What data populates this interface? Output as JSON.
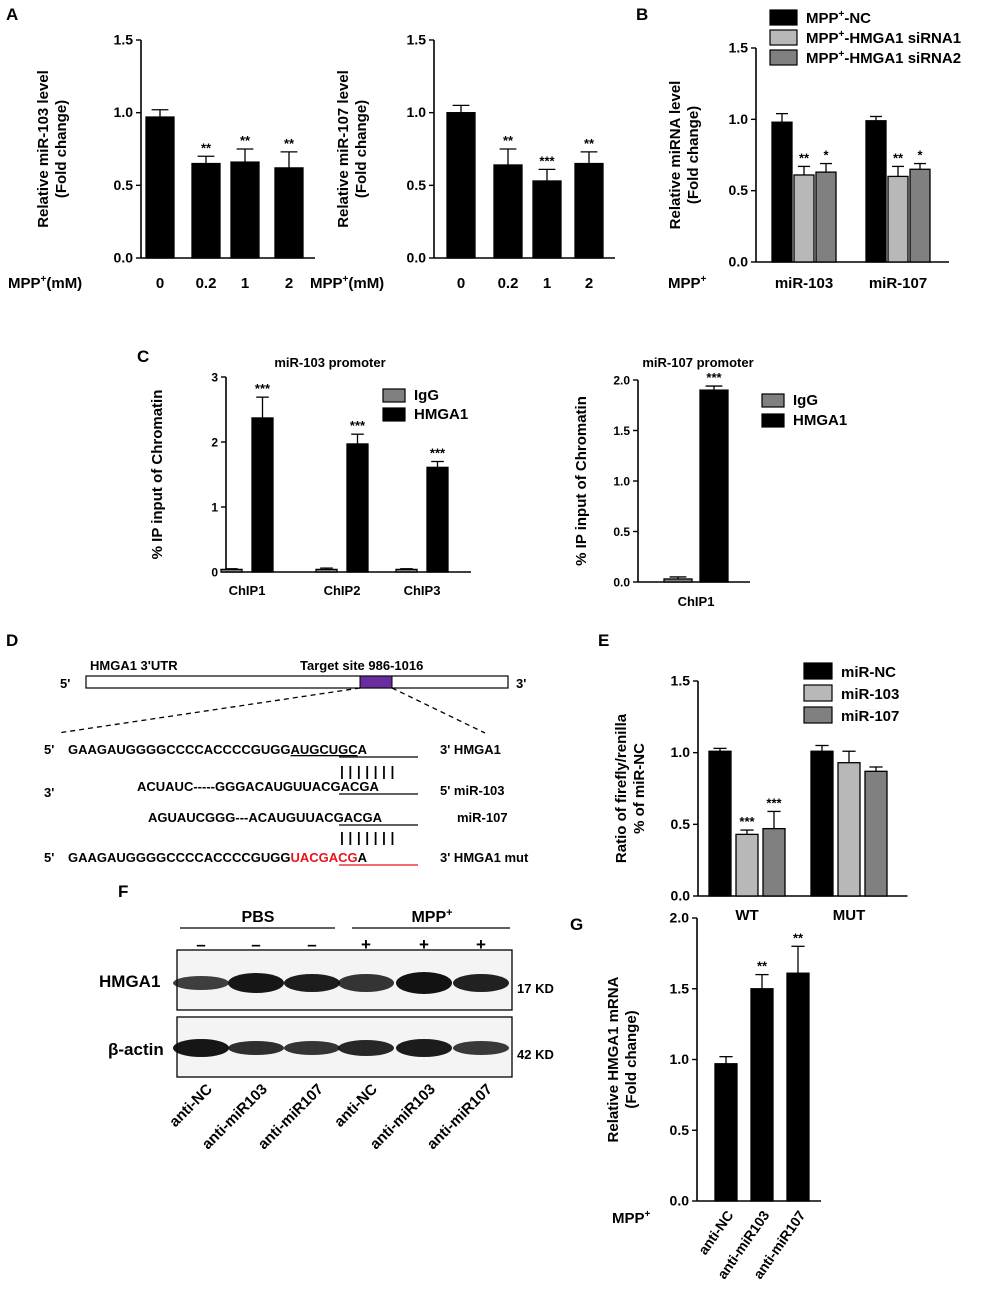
{
  "panels": {
    "A": "A",
    "B": "B",
    "C": "C",
    "D": "D",
    "E": "E",
    "F": "F",
    "G": "G"
  },
  "colors": {
    "black": "#000000",
    "gray_light": "#b8b8b8",
    "gray_dark": "#808080",
    "purple": "#6a2c9e",
    "red": "#e8141b"
  },
  "chart_data": [
    {
      "id": "A1",
      "type": "bar",
      "title": "",
      "ylabel": [
        "Relative miR-103 level",
        "(Fold change)"
      ],
      "xlabel_prefix": "MPP",
      "xlabel_sup": "+",
      "xlabel_suffix": "(mM)",
      "categories": [
        "0",
        "0.2",
        "1",
        "2"
      ],
      "values": [
        0.97,
        0.65,
        0.66,
        0.62
      ],
      "errors": [
        0.05,
        0.05,
        0.09,
        0.11
      ],
      "significance": [
        "",
        "**",
        "**",
        "**"
      ],
      "ylim": [
        0,
        1.5
      ],
      "yticks": [
        "0.0",
        "0.5",
        "1.0",
        "1.5"
      ]
    },
    {
      "id": "A2",
      "type": "bar",
      "title": "",
      "ylabel": [
        "Relative miR-107 level",
        "(Fold change)"
      ],
      "xlabel_prefix": "MPP",
      "xlabel_sup": "+",
      "xlabel_suffix": "(mM)",
      "categories": [
        "0",
        "0.2",
        "1",
        "2"
      ],
      "values": [
        1.0,
        0.64,
        0.53,
        0.65
      ],
      "errors": [
        0.05,
        0.11,
        0.08,
        0.08
      ],
      "significance": [
        "",
        "**",
        "***",
        "**"
      ],
      "ylim": [
        0,
        1.5
      ],
      "yticks": [
        "0.0",
        "0.5",
        "1.0",
        "1.5"
      ]
    },
    {
      "id": "B",
      "type": "bar",
      "ylabel": [
        "Relative miRNA level",
        "(Fold change)"
      ],
      "xlabel_prefix": "MPP",
      "xlabel_sup": "+",
      "categories": [
        "miR-103",
        "miR-107"
      ],
      "series": [
        {
          "name": [
            "MPP",
            "+",
            "-NC"
          ],
          "color": "#000000",
          "values": [
            0.98,
            0.99
          ],
          "errors": [
            0.06,
            0.03
          ],
          "significance": [
            "",
            ""
          ]
        },
        {
          "name": [
            "MPP",
            "+",
            "-HMGA1 siRNA1"
          ],
          "color": "#b8b8b8",
          "values": [
            0.61,
            0.6
          ],
          "errors": [
            0.06,
            0.07
          ],
          "significance": [
            "**",
            "**"
          ]
        },
        {
          "name": [
            "MPP",
            "+",
            "-HMGA1 siRNA2"
          ],
          "color": "#808080",
          "values": [
            0.63,
            0.65
          ],
          "errors": [
            0.06,
            0.04
          ],
          "significance": [
            "*",
            "*"
          ]
        }
      ],
      "legend": "top",
      "ylim": [
        0,
        1.5
      ],
      "yticks": [
        "0.0",
        "0.5",
        "1.0",
        "1.5"
      ]
    },
    {
      "id": "C1",
      "type": "bar",
      "title": "miR-103 promoter",
      "ylabel": [
        "% IP input of Chromatin"
      ],
      "categories": [
        "ChIP1",
        "ChIP2",
        "ChIP3"
      ],
      "series": [
        {
          "name": "IgG",
          "color": "#808080",
          "values": [
            0.04,
            0.04,
            0.04
          ],
          "errors": [
            0.01,
            0.02,
            0.01
          ],
          "significance": [
            "",
            "",
            ""
          ]
        },
        {
          "name": "HMGA1",
          "color": "#000000",
          "values": [
            2.37,
            1.97,
            1.61
          ],
          "errors": [
            0.32,
            0.15,
            0.09
          ],
          "significance": [
            "***",
            "***",
            "***"
          ]
        }
      ],
      "legend": "top-right",
      "ylim": [
        0,
        3
      ],
      "yticks": [
        "0",
        "1",
        "2",
        "3"
      ]
    },
    {
      "id": "C2",
      "type": "bar",
      "title": "miR-107 promoter",
      "ylabel": [
        "% IP input of Chromatin"
      ],
      "categories": [
        "ChIP1"
      ],
      "series": [
        {
          "name": "IgG",
          "color": "#808080",
          "values": [
            0.03
          ],
          "errors": [
            0.02
          ],
          "significance": [
            ""
          ]
        },
        {
          "name": "HMGA1",
          "color": "#000000",
          "values": [
            1.9
          ],
          "errors": [
            0.04
          ],
          "significance": [
            "***"
          ]
        }
      ],
      "legend": "top-right",
      "ylim": [
        0,
        2.0
      ],
      "yticks": [
        "0.0",
        "0.5",
        "1.0",
        "1.5",
        "2.0"
      ]
    },
    {
      "id": "E",
      "type": "bar",
      "ylabel": [
        "Ratio of firefly/renilla",
        "% of miR-NC"
      ],
      "categories": [
        "WT",
        "MUT"
      ],
      "series": [
        {
          "name": "miR-NC",
          "color": "#000000",
          "values": [
            1.01,
            1.01
          ],
          "errors": [
            0.02,
            0.04
          ],
          "significance": [
            "",
            ""
          ]
        },
        {
          "name": "miR-103",
          "color": "#b8b8b8",
          "values": [
            0.43,
            0.93
          ],
          "errors": [
            0.03,
            0.08
          ],
          "significance": [
            "***",
            ""
          ]
        },
        {
          "name": "miR-107",
          "color": "#808080",
          "values": [
            0.47,
            0.87
          ],
          "errors": [
            0.12,
            0.03
          ],
          "significance": [
            "***",
            ""
          ]
        }
      ],
      "legend": "top-right",
      "ylim": [
        0,
        1.5
      ],
      "yticks": [
        "0.0",
        "0.5",
        "1.0",
        "1.5"
      ]
    },
    {
      "id": "G",
      "type": "bar",
      "ylabel": [
        "Relative HMGA1 mRNA",
        "(Fold change)"
      ],
      "xlabel_prefix": "MPP",
      "xlabel_sup": "+",
      "categories": [
        "anti-NC",
        "anti-miR103",
        "anti-miR107"
      ],
      "values": [
        0.97,
        1.5,
        1.61
      ],
      "errors": [
        0.05,
        0.1,
        0.19
      ],
      "significance": [
        "",
        "**",
        "**"
      ],
      "ylim": [
        0,
        2.0
      ],
      "yticks": [
        "0.0",
        "0.5",
        "1.0",
        "1.5",
        "2.0"
      ]
    }
  ],
  "panel_D": {
    "utr_label": "HMGA1 3'UTR",
    "target_label": "Target site 986-1016",
    "five_prime": "5'",
    "three_prime": "3'",
    "row1": {
      "left": "5'",
      "seq_a": "GAAGAUGGGGCCCCACCCCGUGG",
      "seq_b": "AUGCUGC",
      "seq_c": "A",
      "right": "3' HMGA1"
    },
    "pairs": "| | | | | | |",
    "row2": {
      "left": "3'",
      "seq_a": "ACUAUC-----GGGACAUGU",
      "seq_b": "UACGACG",
      "seq_c": "A",
      "right": "5' miR-103"
    },
    "row3": {
      "seq_a": "AGUAUCGGG---ACAUGU",
      "seq_b": "UACGACG",
      "seq_c": "A",
      "right": "miR-107"
    },
    "row4": {
      "left": "5'",
      "seq_a": "GAAGAUGGGGCCCCACCCCGUGG",
      "seq_b": "UACGACG",
      "seq_c": "A",
      "right": "3' HMGA1 mut"
    }
  },
  "panel_F": {
    "group1": "PBS",
    "group2_prefix": "MPP",
    "group2_sup": "+",
    "signs": [
      "–",
      "–",
      "–",
      "+",
      "+",
      "+"
    ],
    "row1_label": "HMGA1",
    "row1_size": "17 KD",
    "row2_label": "β-actin",
    "row2_size": "42 KD",
    "lanes": [
      "anti-NC",
      "anti-miR103",
      "anti-miR107",
      "anti-NC",
      "anti-miR103",
      "anti-miR107"
    ]
  }
}
